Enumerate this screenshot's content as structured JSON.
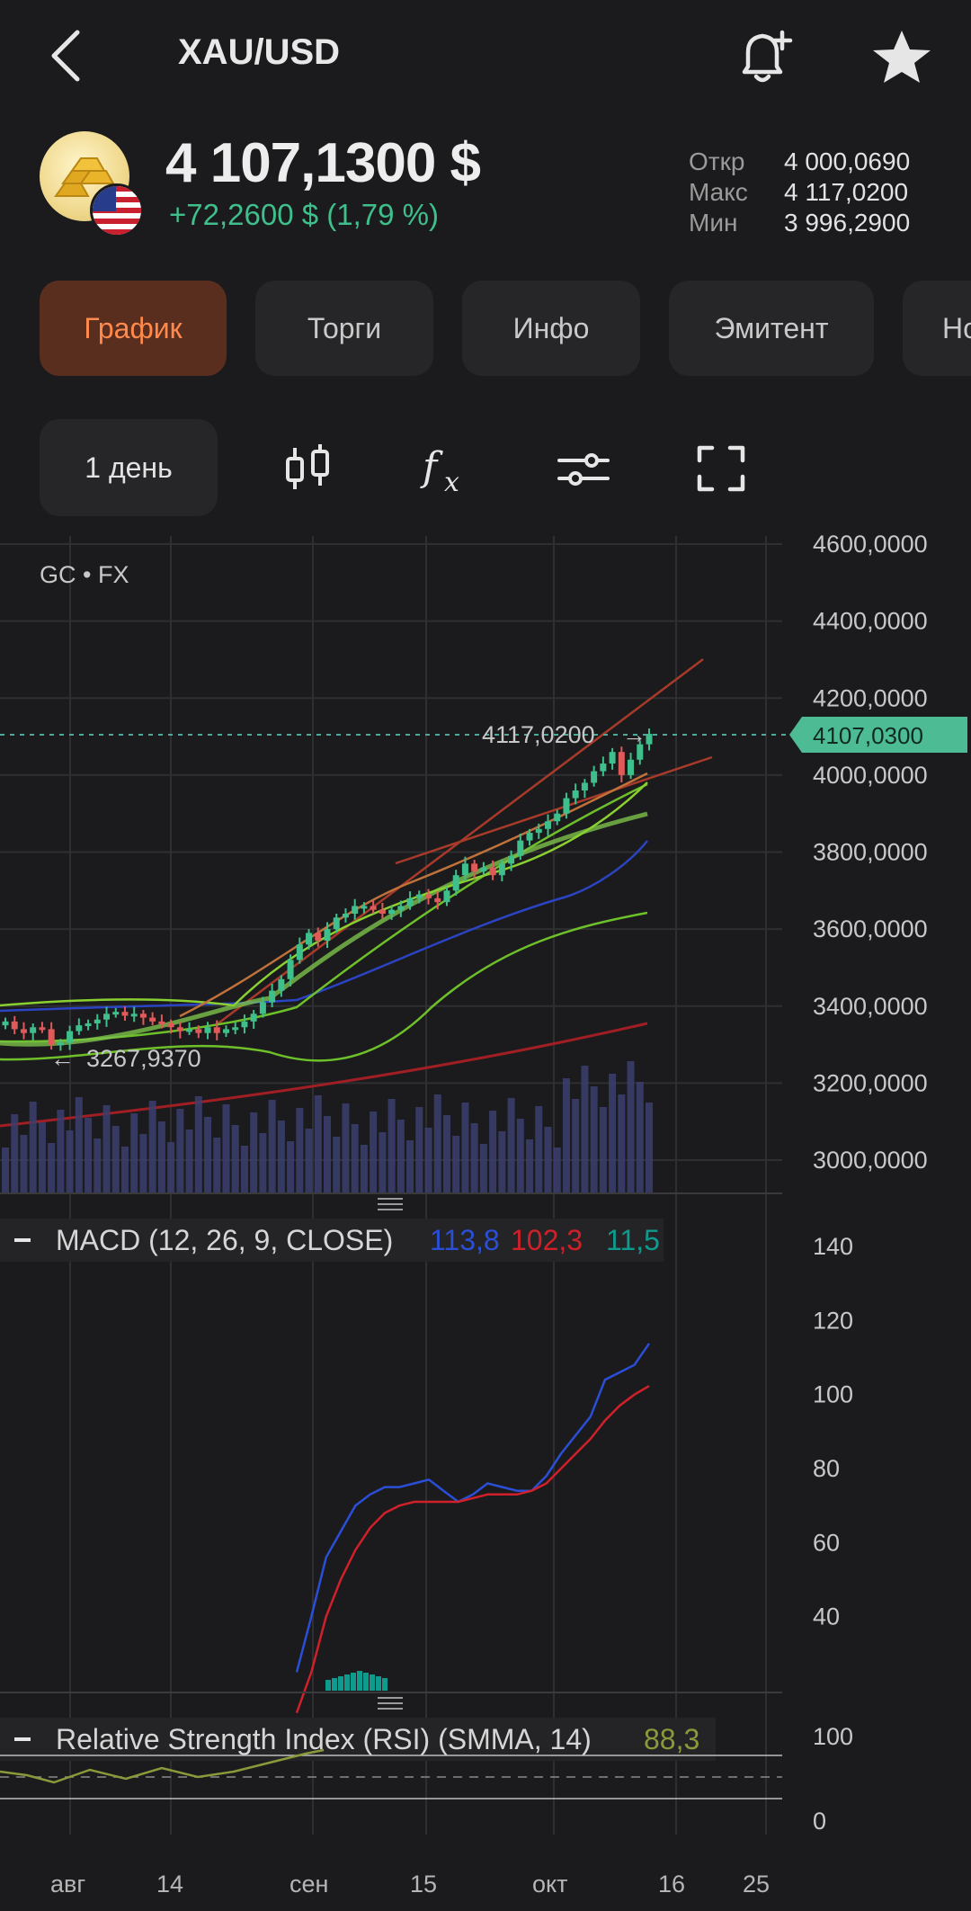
{
  "header": {
    "title": "XAU/USD",
    "back_icon": "chevron-left-icon",
    "alert_icon": "bell-plus-icon",
    "favorite_icon": "star-icon"
  },
  "quote": {
    "price": "4 107,1300 $",
    "change": "+72,2600 $ (1,79 %)",
    "open_label": "Откр",
    "open_value": "4 000,0690",
    "high_label": "Макс",
    "high_value": "4 117,0200",
    "low_label": "Мин",
    "low_value": "3 996,2900"
  },
  "tabs": [
    {
      "label": "График",
      "active": true
    },
    {
      "label": "Торги"
    },
    {
      "label": "Инфо"
    },
    {
      "label": "Эмитент"
    },
    {
      "label": "Но"
    }
  ],
  "toolbar": {
    "interval": "1 день",
    "icons": [
      "candlestick-icon",
      "function-icon",
      "settings-sliders-icon",
      "fullscreen-icon"
    ]
  },
  "colors": {
    "accent": "#ff8a4c",
    "up": "#3fbf8b",
    "down": "#e05a5a",
    "macd": "#2a4fd6",
    "signal": "#d0202a",
    "hist": "#0f9a8e",
    "rsi": "#8a9a3a"
  },
  "chart_data": [
    {
      "type": "candlestick",
      "source": "GC • FX",
      "ylim": [
        3000,
        4600
      ],
      "y_ticks": [
        "4600,0000",
        "4400,0000",
        "4200,0000",
        "4000,0000",
        "3800,0000",
        "3600,0000",
        "3400,0000",
        "3200,0000",
        "3000,0000"
      ],
      "x_ticks": [
        "авг",
        "14",
        "сен",
        "15",
        "окт",
        "16",
        "25"
      ],
      "current_price_label": "4107,0300",
      "max_label": "4117,0200",
      "min_label": "3267,9370",
      "closes": [
        3360,
        3340,
        3330,
        3345,
        3340,
        3300,
        3305,
        3335,
        3350,
        3355,
        3365,
        3380,
        3385,
        3375,
        3380,
        3370,
        3360,
        3355,
        3345,
        3335,
        3340,
        3330,
        3345,
        3330,
        3340,
        3345,
        3360,
        3380,
        3410,
        3440,
        3470,
        3520,
        3560,
        3590,
        3570,
        3600,
        3630,
        3640,
        3660,
        3660,
        3650,
        3640,
        3650,
        3660,
        3680,
        3690,
        3680,
        3670,
        3700,
        3740,
        3770,
        3750,
        3760,
        3740,
        3770,
        3790,
        3830,
        3850,
        3860,
        3880,
        3900,
        3940,
        3960,
        3980,
        4010,
        4030,
        4060,
        4000,
        4040,
        4080,
        4107
      ]
    },
    {
      "type": "line",
      "title": "MACD (12, 26, 9, CLOSE)",
      "values_label": [
        "113,8",
        "102,3",
        "11,5"
      ],
      "ylim": [
        20,
        140
      ],
      "y_ticks": [
        "140",
        "120",
        "100",
        "80",
        "60",
        "40"
      ],
      "series": [
        {
          "values": [
            25,
            40,
            56,
            63,
            70,
            73,
            75,
            75,
            76,
            77,
            74,
            71,
            73,
            76,
            75,
            74,
            74,
            78,
            84,
            89,
            94,
            104,
            106,
            108,
            113.8
          ]
        },
        {
          "values": [
            10,
            25,
            40,
            50,
            58,
            64,
            68,
            70,
            71,
            71,
            71,
            71,
            72,
            73,
            73,
            73,
            74,
            76,
            80,
            84,
            88,
            93,
            97,
            100,
            102.3
          ]
        }
      ]
    },
    {
      "type": "line",
      "title": "Relative Strength Index (RSI) (SMMA, 14)",
      "value_label": "88,3",
      "ylim": [
        0,
        100
      ],
      "y_ticks": [
        "100",
        "0"
      ]
    }
  ]
}
